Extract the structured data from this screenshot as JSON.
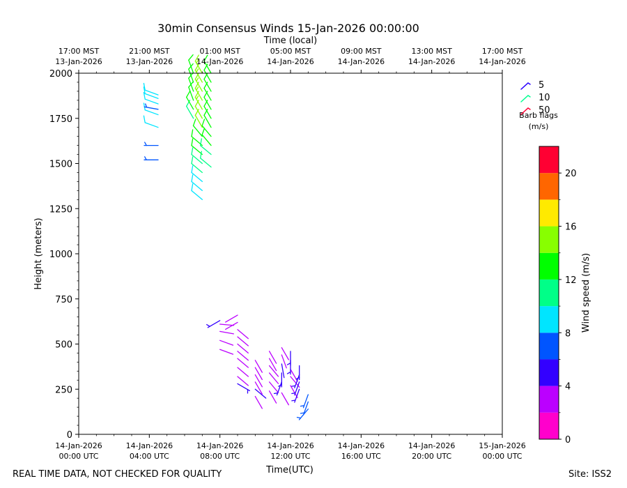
{
  "chart_data": {
    "type": "wind-barb-profile",
    "title": "30min Consensus Winds 15-Jan-2026 00:00:00",
    "top_axis_label": "Time (local)",
    "xlabel": "Time(UTC)",
    "ylabel": "Height (meters)",
    "xlim_hours": [
      0,
      24
    ],
    "ylim": [
      0,
      2000
    ],
    "bottom_ticks": [
      {
        "hours": 0,
        "line1": "14-Jan-2026",
        "line2": "00:00 UTC"
      },
      {
        "hours": 4,
        "line1": "14-Jan-2026",
        "line2": "04:00 UTC"
      },
      {
        "hours": 8,
        "line1": "14-Jan-2026",
        "line2": "08:00 UTC"
      },
      {
        "hours": 12,
        "line1": "14-Jan-2026",
        "line2": "12:00 UTC"
      },
      {
        "hours": 16,
        "line1": "14-Jan-2026",
        "line2": "16:00 UTC"
      },
      {
        "hours": 20,
        "line1": "14-Jan-2026",
        "line2": "20:00 UTC"
      },
      {
        "hours": 24,
        "line1": "15-Jan-2026",
        "line2": "00:00 UTC"
      }
    ],
    "top_ticks": [
      {
        "hours": 0,
        "line1": "17:00 MST",
        "line2": "13-Jan-2026"
      },
      {
        "hours": 4,
        "line1": "21:00 MST",
        "line2": "13-Jan-2026"
      },
      {
        "hours": 8,
        "line1": "01:00 MST",
        "line2": "14-Jan-2026"
      },
      {
        "hours": 12,
        "line1": "05:00 MST",
        "line2": "14-Jan-2026"
      },
      {
        "hours": 16,
        "line1": "09:00 MST",
        "line2": "14-Jan-2026"
      },
      {
        "hours": 20,
        "line1": "13:00 MST",
        "line2": "14-Jan-2026"
      },
      {
        "hours": 24,
        "line1": "17:00 MST",
        "line2": "14-Jan-2026"
      }
    ],
    "y_ticks": [
      0,
      250,
      500,
      750,
      1000,
      1250,
      1500,
      1750,
      2000
    ],
    "legend": {
      "title": "Barb flags",
      "units": "(m/s)",
      "entries": [
        {
          "label": "5",
          "color": "#2a00ff"
        },
        {
          "label": "10",
          "color": "#00ff90"
        },
        {
          "label": "50",
          "color": "#ff0033"
        }
      ]
    },
    "colorbar": {
      "label": "Wind speed (m/s)",
      "min": 0,
      "max": 22,
      "ticks": [
        0,
        4,
        8,
        12,
        16,
        20
      ],
      "bins": [
        {
          "from": 0,
          "to": 2,
          "color": "#ff00cc"
        },
        {
          "from": 2,
          "to": 4,
          "color": "#bb00ff"
        },
        {
          "from": 4,
          "to": 6,
          "color": "#3300ff"
        },
        {
          "from": 6,
          "to": 8,
          "color": "#0055ff"
        },
        {
          "from": 8,
          "to": 10,
          "color": "#00e5ff"
        },
        {
          "from": 10,
          "to": 12,
          "color": "#00ff88"
        },
        {
          "from": 12,
          "to": 14,
          "color": "#00ff00"
        },
        {
          "from": 14,
          "to": 16,
          "color": "#88ff00"
        },
        {
          "from": 16,
          "to": 18,
          "color": "#ffea00"
        },
        {
          "from": 18,
          "to": 20,
          "color": "#ff6600"
        },
        {
          "from": 20,
          "to": 22,
          "color": "#ff0033"
        }
      ]
    },
    "series": [
      {
        "time_hours": 4.5,
        "barbs": [
          {
            "height": 1520,
            "speed": 7,
            "dir": 270
          },
          {
            "height": 1600,
            "speed": 7,
            "dir": 270
          },
          {
            "height": 1700,
            "speed": 8,
            "dir": 290
          },
          {
            "height": 1770,
            "speed": 8,
            "dir": 290
          },
          {
            "height": 1800,
            "speed": 6,
            "dir": 280
          },
          {
            "height": 1830,
            "speed": 9,
            "dir": 290
          },
          {
            "height": 1860,
            "speed": 9,
            "dir": 290
          },
          {
            "height": 1880,
            "speed": 9,
            "dir": 290
          }
        ]
      },
      {
        "time_hours": 6.5,
        "barbs": [
          {
            "height": 1750,
            "speed": 11,
            "dir": 330
          },
          {
            "height": 1800,
            "speed": 12,
            "dir": 330
          },
          {
            "height": 1850,
            "speed": 13,
            "dir": 340
          },
          {
            "height": 1900,
            "speed": 13,
            "dir": 340
          },
          {
            "height": 1950,
            "speed": 13,
            "dir": 340
          },
          {
            "height": 2000,
            "speed": 13,
            "dir": 340
          }
        ]
      },
      {
        "time_hours": 7.0,
        "barbs": [
          {
            "height": 1300,
            "speed": 9,
            "dir": 310
          },
          {
            "height": 1350,
            "speed": 9,
            "dir": 310
          },
          {
            "height": 1400,
            "speed": 9,
            "dir": 310
          },
          {
            "height": 1450,
            "speed": 10,
            "dir": 310
          },
          {
            "height": 1500,
            "speed": 11,
            "dir": 310
          },
          {
            "height": 1550,
            "speed": 12,
            "dir": 310
          },
          {
            "height": 1600,
            "speed": 13,
            "dir": 310
          },
          {
            "height": 1650,
            "speed": 13,
            "dir": 320
          },
          {
            "height": 1700,
            "speed": 14,
            "dir": 330
          },
          {
            "height": 1750,
            "speed": 14,
            "dir": 330
          },
          {
            "height": 1800,
            "speed": 15,
            "dir": 330
          },
          {
            "height": 1850,
            "speed": 15,
            "dir": 330
          },
          {
            "height": 1900,
            "speed": 15,
            "dir": 330
          },
          {
            "height": 1950,
            "speed": 15,
            "dir": 330
          },
          {
            "height": 2000,
            "speed": 15,
            "dir": 330
          }
        ]
      },
      {
        "time_hours": 7.5,
        "barbs": [
          {
            "height": 1480,
            "speed": 11,
            "dir": 310
          },
          {
            "height": 1550,
            "speed": 11,
            "dir": 310
          },
          {
            "height": 1600,
            "speed": 12,
            "dir": 320
          },
          {
            "height": 1650,
            "speed": 12,
            "dir": 320
          },
          {
            "height": 1700,
            "speed": 13,
            "dir": 330
          },
          {
            "height": 1750,
            "speed": 13,
            "dir": 330
          },
          {
            "height": 1800,
            "speed": 13,
            "dir": 330
          },
          {
            "height": 1850,
            "speed": 13,
            "dir": 330
          },
          {
            "height": 1900,
            "speed": 13,
            "dir": 330
          },
          {
            "height": 1950,
            "speed": 13,
            "dir": 330
          },
          {
            "height": 2000,
            "speed": 13,
            "dir": 330
          }
        ]
      },
      {
        "time_hours": 8.0,
        "barbs": [
          {
            "height": 470,
            "speed": 3,
            "dir": 110
          },
          {
            "height": 520,
            "speed": 2,
            "dir": 110
          },
          {
            "height": 570,
            "speed": 2,
            "dir": 100
          },
          {
            "height": 610,
            "speed": 2,
            "dir": 95
          },
          {
            "height": 630,
            "speed": 5,
            "dir": 240
          }
        ]
      },
      {
        "time_hours": 9.0,
        "barbs": [
          {
            "height": 280,
            "speed": 5,
            "dir": 120
          },
          {
            "height": 320,
            "speed": 3,
            "dir": 130
          },
          {
            "height": 370,
            "speed": 3,
            "dir": 130
          },
          {
            "height": 420,
            "speed": 3,
            "dir": 130
          },
          {
            "height": 460,
            "speed": 3,
            "dir": 130
          },
          {
            "height": 500,
            "speed": 3,
            "dir": 130
          },
          {
            "height": 540,
            "speed": 3,
            "dir": 130
          },
          {
            "height": 580,
            "speed": 3,
            "dir": 130
          },
          {
            "height": 620,
            "speed": 3,
            "dir": 240
          },
          {
            "height": 660,
            "speed": 3,
            "dir": 240
          }
        ]
      },
      {
        "time_hours": 10.0,
        "barbs": [
          {
            "height": 210,
            "speed": 3,
            "dir": 150
          },
          {
            "height": 250,
            "speed": 4,
            "dir": 130
          },
          {
            "height": 290,
            "speed": 3,
            "dir": 150
          },
          {
            "height": 330,
            "speed": 3,
            "dir": 150
          },
          {
            "height": 370,
            "speed": 3,
            "dir": 150
          },
          {
            "height": 410,
            "speed": 3,
            "dir": 150
          }
        ]
      },
      {
        "time_hours": 10.8,
        "barbs": [
          {
            "height": 240,
            "speed": 3,
            "dir": 150
          },
          {
            "height": 290,
            "speed": 3,
            "dir": 140
          },
          {
            "height": 340,
            "speed": 3,
            "dir": 140
          },
          {
            "height": 380,
            "speed": 3,
            "dir": 140
          },
          {
            "height": 420,
            "speed": 3,
            "dir": 150
          },
          {
            "height": 460,
            "speed": 3,
            "dir": 150
          }
        ]
      },
      {
        "time_hours": 11.5,
        "barbs": [
          {
            "height": 230,
            "speed": 3,
            "dir": 150
          },
          {
            "height": 290,
            "speed": 5,
            "dir": 200
          },
          {
            "height": 340,
            "speed": 5,
            "dir": 180
          },
          {
            "height": 390,
            "speed": 4,
            "dir": 170
          },
          {
            "height": 440,
            "speed": 3,
            "dir": 160
          },
          {
            "height": 480,
            "speed": 3,
            "dir": 150
          }
        ]
      },
      {
        "time_hours": 12.0,
        "barbs": [
          {
            "height": 270,
            "speed": 3,
            "dir": 150
          },
          {
            "height": 320,
            "speed": 3,
            "dir": 140
          },
          {
            "height": 360,
            "speed": 3,
            "dir": 150
          },
          {
            "height": 410,
            "speed": 5,
            "dir": 180
          },
          {
            "height": 460,
            "speed": 5,
            "dir": 180
          }
        ]
      },
      {
        "time_hours": 12.5,
        "barbs": [
          {
            "height": 250,
            "speed": 5,
            "dir": 200
          },
          {
            "height": 290,
            "speed": 5,
            "dir": 200
          },
          {
            "height": 330,
            "speed": 5,
            "dir": 200
          },
          {
            "height": 380,
            "speed": 5,
            "dir": 180
          }
        ]
      },
      {
        "time_hours": 13.0,
        "barbs": [
          {
            "height": 140,
            "speed": 7,
            "dir": 220
          },
          {
            "height": 180,
            "speed": 7,
            "dir": 200
          },
          {
            "height": 220,
            "speed": 7,
            "dir": 200
          }
        ]
      }
    ]
  },
  "footer": {
    "left": "REAL TIME DATA, NOT CHECKED FOR QUALITY",
    "right": "Site: ISS2"
  }
}
